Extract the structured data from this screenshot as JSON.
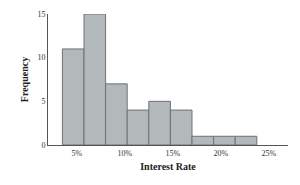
{
  "chart_data": {
    "type": "histogram",
    "x_label": "Interest Rate",
    "y_label": "Frequency",
    "bins": [
      3.5,
      5.75,
      8,
      10.25,
      12.5,
      14.75,
      17,
      19.25,
      21.5,
      23.75
    ],
    "values": [
      11,
      15,
      7,
      4,
      5,
      4,
      1,
      1,
      1
    ],
    "color": "#b3b9ba",
    "xlim": [
      2,
      27
    ],
    "xticks": [
      {
        "value": 5,
        "label": "5%"
      },
      {
        "value": 10,
        "label": "10%"
      },
      {
        "value": 15,
        "label": "15%"
      },
      {
        "value": 20,
        "label": "20%"
      },
      {
        "value": 25,
        "label": "25%"
      }
    ],
    "ylim": [
      0,
      15
    ],
    "yticks": [
      0,
      5,
      10,
      15
    ],
    "grid": false
  }
}
